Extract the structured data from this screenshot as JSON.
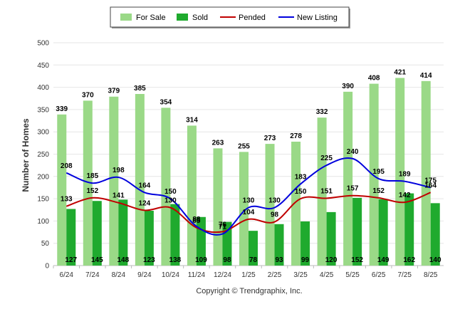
{
  "chart_data": {
    "type": "bar",
    "title": "",
    "xlabel": "",
    "ylabel": "Number of Homes",
    "ylim": [
      0,
      500
    ],
    "yticks": [
      0,
      50,
      100,
      150,
      200,
      250,
      300,
      350,
      400,
      450,
      500
    ],
    "grid": true,
    "legend_position": "top-center",
    "categories": [
      "6/24",
      "7/24",
      "8/24",
      "9/24",
      "10/24",
      "11/24",
      "12/24",
      "1/25",
      "2/25",
      "3/25",
      "4/25",
      "5/25",
      "6/25",
      "7/25",
      "8/25"
    ],
    "series": [
      {
        "name": "For Sale",
        "kind": "bar",
        "color": "#9ad987",
        "values": [
          339,
          370,
          379,
          385,
          354,
          314,
          263,
          255,
          273,
          278,
          332,
          390,
          408,
          421,
          414
        ]
      },
      {
        "name": "Sold",
        "kind": "bar",
        "color": "#1faa2e",
        "values": [
          127,
          145,
          148,
          123,
          138,
          109,
          98,
          78,
          93,
          99,
          120,
          152,
          149,
          162,
          140
        ]
      },
      {
        "name": "Pended",
        "kind": "line",
        "color": "#c00000",
        "values": [
          133,
          152,
          141,
          124,
          130,
          85,
          76,
          104,
          98,
          150,
          151,
          157,
          152,
          142,
          164
        ]
      },
      {
        "name": "New Listing",
        "kind": "line",
        "color": "#0000dd",
        "values": [
          208,
          185,
          198,
          164,
          150,
          88,
          71,
          130,
          130,
          183,
          225,
          240,
          195,
          189,
          175
        ]
      }
    ],
    "footer": "Copyright © Trendgraphix, Inc."
  }
}
